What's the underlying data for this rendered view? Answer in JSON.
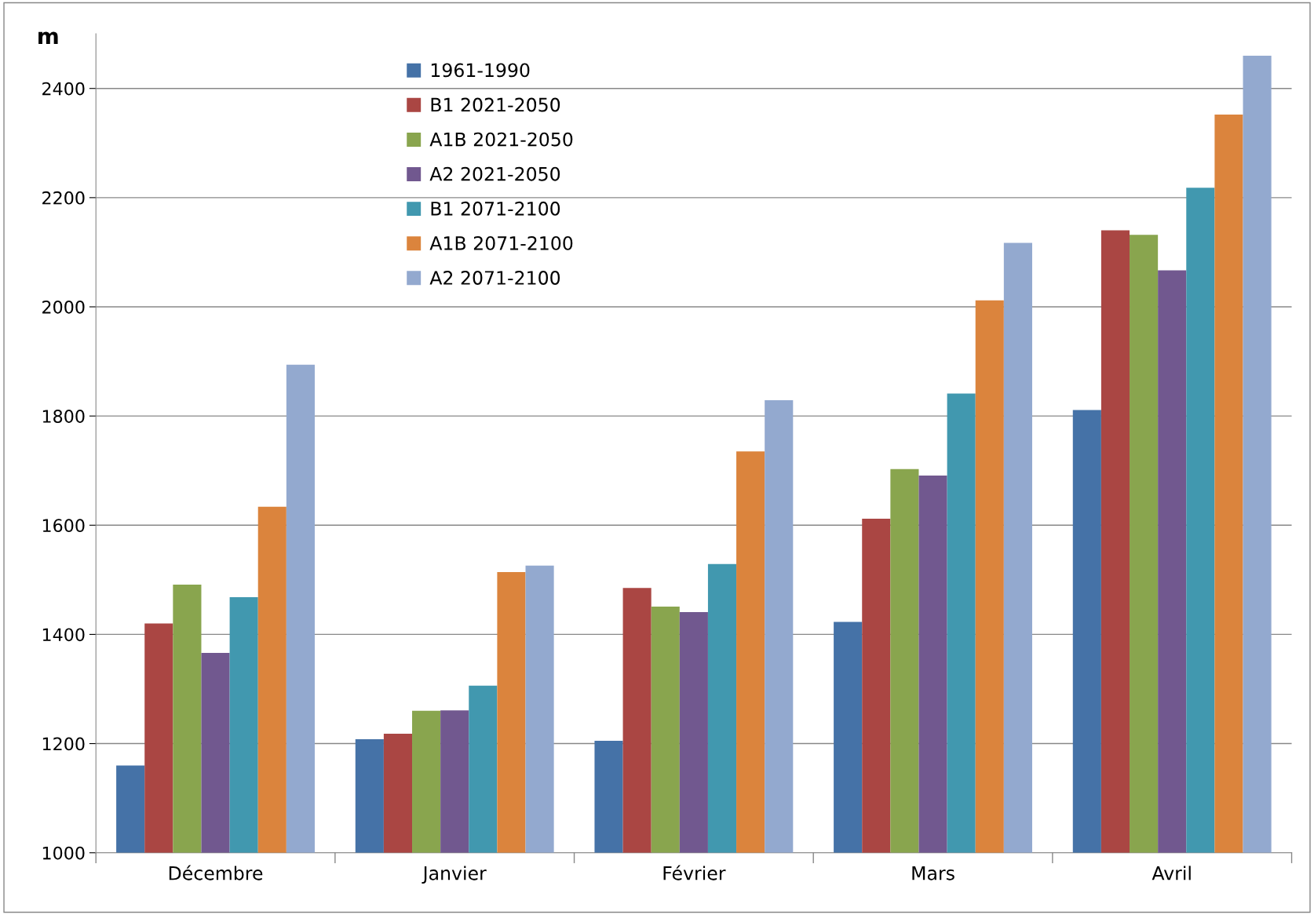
{
  "chart_data": {
    "type": "bar",
    "ylabel": "m",
    "categories": [
      "Décembre",
      "Janvier",
      "Février",
      "Mars",
      "Avril"
    ],
    "series": [
      {
        "name": "1961-1990",
        "color": "#4572a7",
        "values": [
          1160,
          1208,
          1205,
          1423,
          1811
        ]
      },
      {
        "name": "B1 2021-2050",
        "color": "#aa4643",
        "values": [
          1420,
          1218,
          1485,
          1612,
          2140
        ]
      },
      {
        "name": "A1B 2021-2050",
        "color": "#89a54e",
        "values": [
          1491,
          1260,
          1451,
          1703,
          2132
        ]
      },
      {
        "name": "A2 2021-2050",
        "color": "#71588f",
        "values": [
          1366,
          1261,
          1441,
          1691,
          2067
        ]
      },
      {
        "name": "B1 2071-2100",
        "color": "#4198af",
        "values": [
          1468,
          1306,
          1529,
          1841,
          2218
        ]
      },
      {
        "name": "A1B 2071-2100",
        "color": "#db843d",
        "values": [
          1634,
          1514,
          1735,
          2012,
          2352
        ]
      },
      {
        "name": "A2 2071-2100",
        "color": "#93a9cf",
        "values": [
          1894,
          1526,
          1829,
          2117,
          2460
        ]
      }
    ],
    "ylim": [
      1000,
      2500
    ],
    "yticks": [
      1000,
      1200,
      1400,
      1600,
      1800,
      2000,
      2200,
      2400
    ],
    "grid": "y",
    "legend": "top"
  }
}
